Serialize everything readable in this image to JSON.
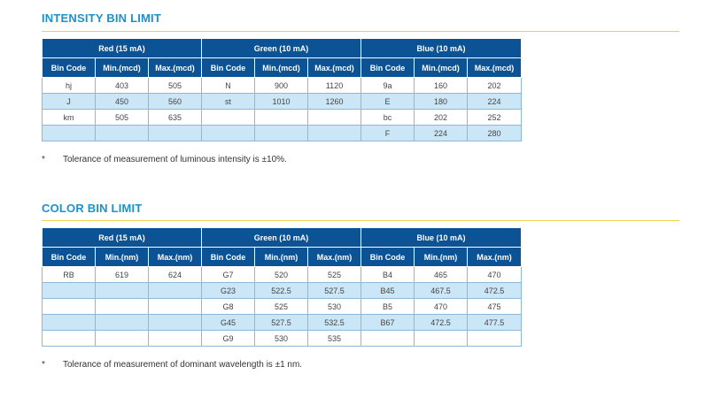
{
  "intensity": {
    "title": "INTENSITY BIN LIMIT",
    "groups": [
      "Red (15 mA)",
      "Green (10 mA)",
      "Blue (10 mA)"
    ],
    "headers": [
      "Bin Code",
      "Min.(mcd)",
      "Max.(mcd)",
      "Bin Code",
      "Min.(mcd)",
      "Max.(mcd)",
      "Bin Code",
      "Min.(mcd)",
      "Max.(mcd)"
    ],
    "rows": [
      [
        "hj",
        "403",
        "505",
        "N",
        "900",
        "1120",
        "9a",
        "160",
        "202"
      ],
      [
        "J",
        "450",
        "560",
        "st",
        "1010",
        "1260",
        "E",
        "180",
        "224"
      ],
      [
        "km",
        "505",
        "635",
        "",
        "",
        "",
        "bc",
        "202",
        "252"
      ],
      [
        "",
        "",
        "",
        "",
        "",
        "",
        "F",
        "224",
        "280"
      ]
    ],
    "note_mark": "*",
    "note": "Tolerance of measurement of luminous intensity is ±10%."
  },
  "color": {
    "title": "COLOR BIN LIMIT",
    "groups": [
      "Red (15 mA)",
      "Green (10 mA)",
      "Blue (10 mA)"
    ],
    "headers": [
      "Bin Code",
      "Min.(nm)",
      "Max.(nm)",
      "Bin Code",
      "Min.(nm)",
      "Max.(nm)",
      "Bin Code",
      "Min.(nm)",
      "Max.(nm)"
    ],
    "rows": [
      [
        "RB",
        "619",
        "624",
        "G7",
        "520",
        "525",
        "B4",
        "465",
        "470"
      ],
      [
        "",
        "",
        "",
        "G23",
        "522.5",
        "527.5",
        "B45",
        "467.5",
        "472.5"
      ],
      [
        "",
        "",
        "",
        "G8",
        "525",
        "530",
        "B5",
        "470",
        "475"
      ],
      [
        "",
        "",
        "",
        "G45",
        "527.5",
        "532.5",
        "B67",
        "472.5",
        "477.5"
      ],
      [
        "",
        "",
        "",
        "G9",
        "530",
        "535",
        "",
        "",
        ""
      ]
    ],
    "note_mark": "*",
    "note": "Tolerance of measurement of dominant wavelength is ±1 nm."
  }
}
